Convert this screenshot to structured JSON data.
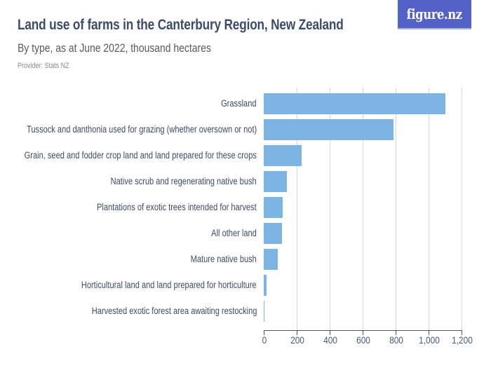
{
  "header": {
    "title": "Land use of farms in the Canterbury Region, New Zealand",
    "subtitle": "By type, as at June 2022, thousand hectares",
    "provider": "Provider: Stats NZ",
    "logo_text": "figure.nz"
  },
  "colors": {
    "bar": "#7cb4e3",
    "title": "#3d4b68",
    "logo_bg": "#5462c8"
  },
  "chart_data": {
    "type": "bar",
    "orientation": "horizontal",
    "title": "Land use of farms in the Canterbury Region, New Zealand",
    "subtitle": "By type, as at June 2022, thousand hectares",
    "xlabel": "",
    "ylabel": "",
    "xlim": [
      0,
      1200
    ],
    "grid": true,
    "legend": null,
    "tick_labels": [
      "0",
      "200",
      "400",
      "600",
      "800",
      "1,000",
      "1,200"
    ],
    "tick_values": [
      0,
      200,
      400,
      600,
      800,
      1000,
      1200
    ],
    "categories": [
      "Grassland",
      "Tussock and danthonia used for grazing (whether oversown or not)",
      "Grain, seed and fodder crop land and land prepared for these crops",
      "Native scrub and regenerating native bush",
      "Plantations of exotic trees intended for harvest",
      "All other land",
      "Mature native bush",
      "Horticultural land and land prepared for horticulture",
      "Harvested exotic forest area awaiting restocking"
    ],
    "values": [
      1100,
      788,
      230,
      139,
      113,
      109,
      85,
      16,
      4
    ]
  }
}
